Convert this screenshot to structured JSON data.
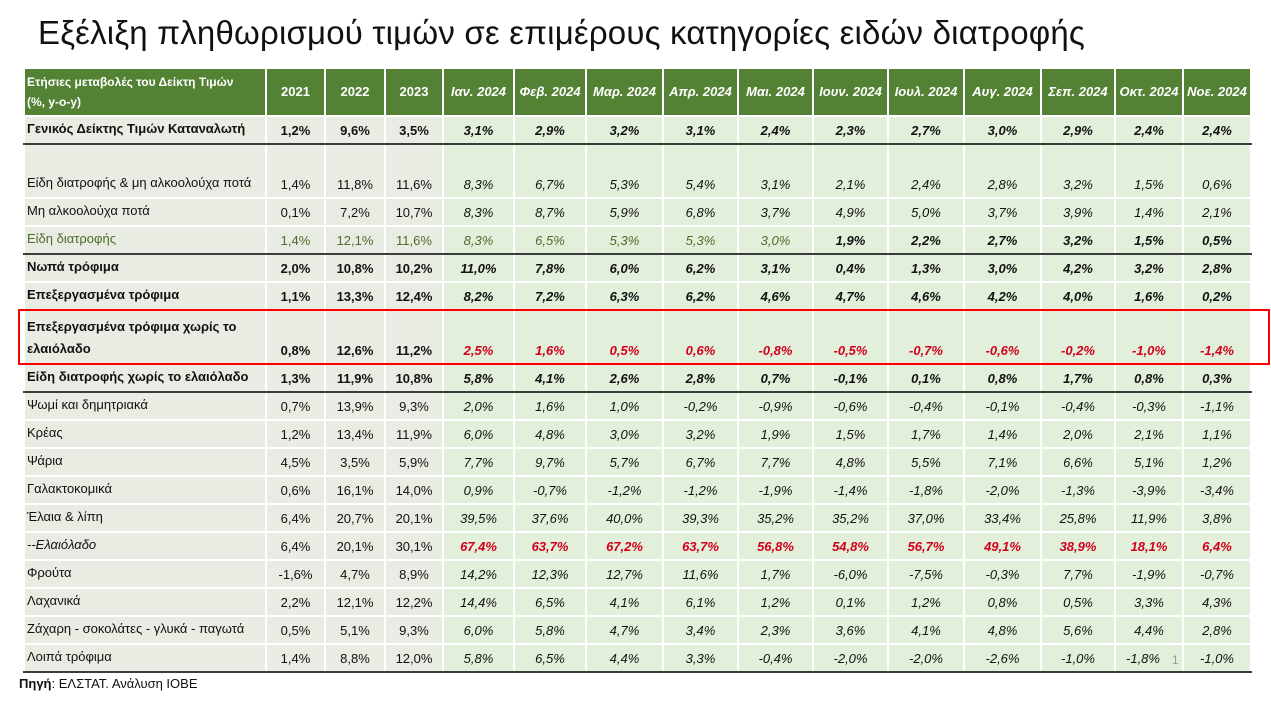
{
  "title": "Εξέλιξη πληθωρισμού τιμών σε επιμέρους κατηγορίες ειδών διατροφής",
  "colors": {
    "header_bg": "#548235",
    "highlight_box": "#ff0000",
    "negative_highlight": "#d0021b",
    "monthly_bg": "#e2efda",
    "annual_bg": "#e8ece3"
  },
  "table": {
    "header_label_line1": "Ετήσιες μεταβολές του Δείκτη Τιμών",
    "header_label_line2": "(%, y-o-y)",
    "columns": [
      "2021",
      "2022",
      "2023",
      "Ιαν. 2024",
      "Φεβ. 2024",
      "Μαρ. 2024",
      "Απρ. 2024",
      "Μαι. 2024",
      "Ιουν. 2024",
      "Ιουλ. 2024",
      "Αυγ. 2024",
      "Σεπ. 2024",
      "Οκτ. 2024",
      "Νοε. 2024"
    ],
    "rows": [
      {
        "label": "Γενικός Δείκτης Τιμών Καταναλωτή",
        "style": "bold",
        "values": [
          "1,2%",
          "9,6%",
          "3,5%",
          "3,1%",
          "2,9%",
          "3,2%",
          "3,1%",
          "2,4%",
          "2,3%",
          "2,7%",
          "3,0%",
          "2,9%",
          "2,4%",
          "2,4%"
        ]
      },
      {
        "label": "Είδη διατροφής & μη αλκοολούχα ποτά",
        "style": "normal",
        "values": [
          "1,4%",
          "11,8%",
          "11,6%",
          "8,3%",
          "6,7%",
          "5,3%",
          "5,4%",
          "3,1%",
          "2,1%",
          "2,4%",
          "2,8%",
          "3,2%",
          "1,5%",
          "0,6%"
        ]
      },
      {
        "label": "Μη αλκοολούχα ποτά",
        "style": "normal",
        "values": [
          "0,1%",
          "7,2%",
          "10,7%",
          "8,3%",
          "8,7%",
          "5,9%",
          "6,8%",
          "3,7%",
          "4,9%",
          "5,0%",
          "3,7%",
          "3,9%",
          "1,4%",
          "2,1%"
        ]
      },
      {
        "label": "Είδη διατροφής",
        "style": "green",
        "values": [
          "1,4%",
          "12,1%",
          "11,6%",
          "8,3%",
          "6,5%",
          "5,3%",
          "5,3%",
          "3,0%",
          "1,9%",
          "2,2%",
          "2,7%",
          "3,2%",
          "1,5%",
          "0,5%"
        ]
      },
      {
        "label": "Νωπά τρόφιμα",
        "style": "bold",
        "values": [
          "2,0%",
          "10,8%",
          "10,2%",
          "11,0%",
          "7,8%",
          "6,0%",
          "6,2%",
          "3,1%",
          "0,4%",
          "1,3%",
          "3,0%",
          "4,2%",
          "3,2%",
          "2,8%"
        ]
      },
      {
        "label": "Επεξεργασμένα τρόφιμα",
        "style": "bold",
        "values": [
          "1,1%",
          "13,3%",
          "12,4%",
          "8,2%",
          "7,2%",
          "6,3%",
          "6,2%",
          "4,6%",
          "4,7%",
          "4,6%",
          "4,2%",
          "4,0%",
          "1,6%",
          "0,2%"
        ]
      },
      {
        "label": "Επεξεργασμένα τρόφιμα χωρίς το ελαιόλαδο",
        "style": "bold",
        "highlighted": true,
        "values": [
          "0,8%",
          "12,6%",
          "11,2%",
          "2,5%",
          "1,6%",
          "0,5%",
          "0,6%",
          "-0,8%",
          "-0,5%",
          "-0,7%",
          "-0,6%",
          "-0,2%",
          "-1,0%",
          "-1,4%"
        ]
      },
      {
        "label": "Είδη διατροφής χωρίς το ελαιόλαδο",
        "style": "bold",
        "values": [
          "1,3%",
          "11,9%",
          "10,8%",
          "5,8%",
          "4,1%",
          "2,6%",
          "2,8%",
          "0,7%",
          "-0,1%",
          "0,1%",
          "0,8%",
          "1,7%",
          "0,8%",
          "0,3%"
        ]
      },
      {
        "label": "Ψωμί και δημητριακά",
        "style": "normal",
        "values": [
          "0,7%",
          "13,9%",
          "9,3%",
          "2,0%",
          "1,6%",
          "1,0%",
          "-0,2%",
          "-0,9%",
          "-0,6%",
          "-0,4%",
          "-0,1%",
          "-0,4%",
          "-0,3%",
          "-1,1%"
        ]
      },
      {
        "label": "Κρέας",
        "style": "normal",
        "values": [
          "1,2%",
          "13,4%",
          "11,9%",
          "6,0%",
          "4,8%",
          "3,0%",
          "3,2%",
          "1,9%",
          "1,5%",
          "1,7%",
          "1,4%",
          "2,0%",
          "2,1%",
          "1,1%"
        ]
      },
      {
        "label": "Ψάρια",
        "style": "normal",
        "values": [
          "4,5%",
          "3,5%",
          "5,9%",
          "7,7%",
          "9,7%",
          "5,7%",
          "6,7%",
          "7,7%",
          "4,8%",
          "5,5%",
          "7,1%",
          "6,6%",
          "5,1%",
          "1,2%"
        ]
      },
      {
        "label": "Γαλακτοκομικά",
        "style": "normal",
        "values": [
          "0,6%",
          "16,1%",
          "14,0%",
          "0,9%",
          "-0,7%",
          "-1,2%",
          "-1,2%",
          "-1,9%",
          "-1,4%",
          "-1,8%",
          "-2,0%",
          "-1,3%",
          "-3,9%",
          "-3,4%"
        ]
      },
      {
        "label": "Έλαια & λίπη",
        "style": "normal",
        "values": [
          "6,4%",
          "20,7%",
          "20,1%",
          "39,5%",
          "37,6%",
          "40,0%",
          "39,3%",
          "35,2%",
          "35,2%",
          "37,0%",
          "33,4%",
          "25,8%",
          "11,9%",
          "3,8%"
        ]
      },
      {
        "label": "--Ελαιόλαδο",
        "style": "olive",
        "values": [
          "6,4%",
          "20,1%",
          "30,1%",
          "67,4%",
          "63,7%",
          "67,2%",
          "63,7%",
          "56,8%",
          "54,8%",
          "56,7%",
          "49,1%",
          "38,9%",
          "18,1%",
          "6,4%"
        ]
      },
      {
        "label": "Φρούτα",
        "style": "normal",
        "values": [
          "-1,6%",
          "4,7%",
          "8,9%",
          "14,2%",
          "12,3%",
          "12,7%",
          "11,6%",
          "1,7%",
          "-6,0%",
          "-7,5%",
          "-0,3%",
          "7,7%",
          "-1,9%",
          "-0,7%"
        ]
      },
      {
        "label": "Λαχανικά",
        "style": "normal",
        "values": [
          "2,2%",
          "12,1%",
          "12,2%",
          "14,4%",
          "6,5%",
          "4,1%",
          "6,1%",
          "1,2%",
          "0,1%",
          "1,2%",
          "0,8%",
          "0,5%",
          "3,3%",
          "4,3%"
        ]
      },
      {
        "label": "Ζάχαρη - σοκολάτες - γλυκά - παγωτά",
        "style": "normal",
        "values": [
          "0,5%",
          "5,1%",
          "9,3%",
          "6,0%",
          "5,8%",
          "4,7%",
          "3,4%",
          "2,3%",
          "3,6%",
          "4,1%",
          "4,8%",
          "5,6%",
          "4,4%",
          "2,8%"
        ]
      },
      {
        "label": "Λοιπά τρόφιμα",
        "style": "normal",
        "values": [
          "1,4%",
          "8,8%",
          "12,0%",
          "5,8%",
          "6,5%",
          "4,4%",
          "3,3%",
          "-0,4%",
          "-2,0%",
          "-2,0%",
          "-2,6%",
          "-1,0%",
          "-1,8%",
          "-1,0%"
        ]
      }
    ]
  },
  "source_label": "Πηγή",
  "source_text": ": ΕΛΣΤΑΤ. Ανάλυση ΙΟΒΕ",
  "page_number": "1"
}
